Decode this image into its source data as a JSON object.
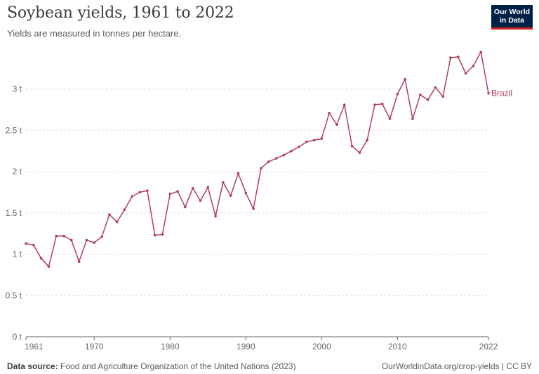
{
  "header": {
    "title": "Soybean yields, 1961 to 2022",
    "subtitle": "Yields are measured in tonnes per hectare."
  },
  "logo": {
    "line1": "Our World",
    "line2": "in Data"
  },
  "footer": {
    "source_label": "Data source:",
    "source_text": "Food and Agriculture Organization of the United Nations (2023)",
    "credit": "OurWorldinData.org/crop-yields | CC BY"
  },
  "colors": {
    "series": "#b13f5a",
    "grid": "#dddddd",
    "axis": "#666666",
    "logo_bg": "#002147",
    "logo_accent": "#ce261e"
  },
  "chart_data": {
    "type": "line",
    "title": "Soybean yields, 1961 to 2022",
    "subtitle": "Yields are measured in tonnes per hectare.",
    "xlabel": "",
    "ylabel": "",
    "xlim": [
      1961,
      2022
    ],
    "ylim": [
      0,
      3.5
    ],
    "grid": true,
    "legend": "end-of-line label",
    "x_ticks": [
      {
        "value": 1961,
        "label": "1961"
      },
      {
        "value": 1970,
        "label": "1970"
      },
      {
        "value": 1980,
        "label": "1980"
      },
      {
        "value": 1990,
        "label": "1990"
      },
      {
        "value": 2000,
        "label": "2000"
      },
      {
        "value": 2010,
        "label": "2010"
      },
      {
        "value": 2022,
        "label": "2022"
      }
    ],
    "y_ticks": [
      {
        "value": 0,
        "label": "0 t"
      },
      {
        "value": 0.5,
        "label": "0.5 t"
      },
      {
        "value": 1,
        "label": "1 t"
      },
      {
        "value": 1.5,
        "label": "1.5 t"
      },
      {
        "value": 2,
        "label": "2 t"
      },
      {
        "value": 2.5,
        "label": "2.5 t"
      },
      {
        "value": 3,
        "label": "3 t"
      }
    ],
    "x": [
      1961,
      1962,
      1963,
      1964,
      1965,
      1966,
      1967,
      1968,
      1969,
      1970,
      1971,
      1972,
      1973,
      1974,
      1975,
      1976,
      1977,
      1978,
      1979,
      1980,
      1981,
      1982,
      1983,
      1984,
      1985,
      1986,
      1987,
      1988,
      1989,
      1990,
      1991,
      1992,
      1993,
      1994,
      1995,
      1996,
      1997,
      1998,
      1999,
      2000,
      2001,
      2002,
      2003,
      2004,
      2005,
      2006,
      2007,
      2008,
      2009,
      2010,
      2011,
      2012,
      2013,
      2014,
      2015,
      2016,
      2017,
      2018,
      2019,
      2020,
      2021,
      2022
    ],
    "series": [
      {
        "name": "Brazil",
        "values": [
          1.13,
          1.11,
          0.95,
          0.85,
          1.22,
          1.22,
          1.17,
          0.91,
          1.17,
          1.14,
          1.21,
          1.48,
          1.39,
          1.54,
          1.7,
          1.75,
          1.77,
          1.23,
          1.24,
          1.73,
          1.76,
          1.57,
          1.8,
          1.65,
          1.81,
          1.46,
          1.87,
          1.71,
          1.98,
          1.74,
          1.55,
          2.04,
          2.12,
          2.16,
          2.2,
          2.25,
          2.3,
          2.36,
          2.38,
          2.4,
          2.71,
          2.57,
          2.81,
          2.31,
          2.23,
          2.38,
          2.81,
          2.82,
          2.64,
          2.94,
          3.12,
          2.64,
          2.93,
          2.87,
          3.02,
          2.91,
          3.38,
          3.39,
          3.19,
          3.28,
          3.45,
          2.95
        ]
      }
    ]
  }
}
